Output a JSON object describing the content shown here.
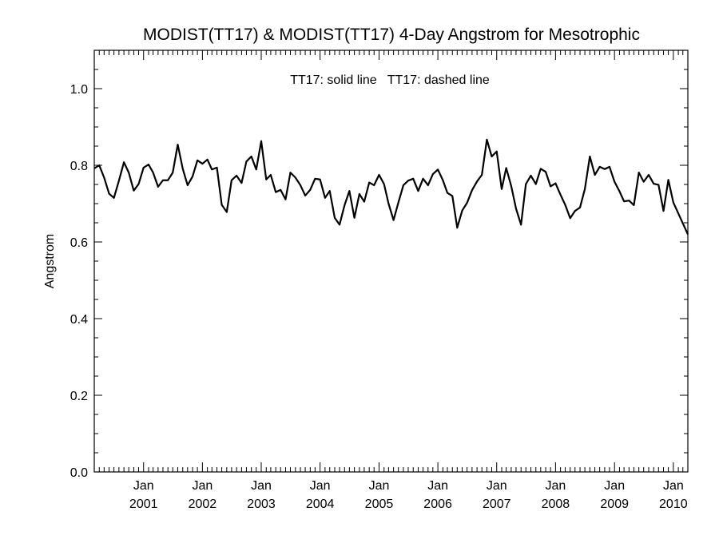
{
  "chart_data": {
    "type": "line",
    "title": "MODIST(TT17) & MODIST(TT17) 4-Day Angstrom for Mesotrophic",
    "xlabel": "",
    "ylabel": "Angstrom",
    "legend_text": "TT17: solid line   TT17: dashed line",
    "ylim": [
      0.0,
      1.1
    ],
    "xlim": [
      "2000-03-01",
      "2010-04-01"
    ],
    "y_ticks": [
      "0.0",
      "0.2",
      "0.4",
      "0.6",
      "0.8",
      "1.0"
    ],
    "x_ticks": [
      {
        "month": "Jan",
        "year": "2001",
        "date": "2001-01-01"
      },
      {
        "month": "Jan",
        "year": "2002",
        "date": "2002-01-01"
      },
      {
        "month": "Jan",
        "year": "2003",
        "date": "2003-01-01"
      },
      {
        "month": "Jan",
        "year": "2004",
        "date": "2004-01-01"
      },
      {
        "month": "Jan",
        "year": "2005",
        "date": "2005-01-01"
      },
      {
        "month": "Jan",
        "year": "2006",
        "date": "2006-01-01"
      },
      {
        "month": "Jan",
        "year": "2007",
        "date": "2007-01-01"
      },
      {
        "month": "Jan",
        "year": "2008",
        "date": "2008-01-01"
      },
      {
        "month": "Jan",
        "year": "2009",
        "date": "2009-01-01"
      },
      {
        "month": "Jan",
        "year": "2010",
        "date": "2010-01-01"
      }
    ],
    "series": [
      {
        "line_style": "solid",
        "color": "#000000",
        "points": [
          [
            "2000-03-01",
            0.792
          ],
          [
            "2000-04-01",
            0.8
          ],
          [
            "2000-05-01",
            0.768
          ],
          [
            "2000-06-01",
            0.726
          ],
          [
            "2000-07-01",
            0.715
          ],
          [
            "2000-08-01",
            0.76
          ],
          [
            "2000-09-01",
            0.808
          ],
          [
            "2000-10-01",
            0.781
          ],
          [
            "2000-11-01",
            0.734
          ],
          [
            "2000-12-01",
            0.751
          ],
          [
            "2001-01-01",
            0.794
          ],
          [
            "2001-02-01",
            0.802
          ],
          [
            "2001-03-01",
            0.781
          ],
          [
            "2001-04-01",
            0.744
          ],
          [
            "2001-05-01",
            0.761
          ],
          [
            "2001-06-01",
            0.761
          ],
          [
            "2001-07-01",
            0.781
          ],
          [
            "2001-08-01",
            0.854
          ],
          [
            "2001-09-01",
            0.791
          ],
          [
            "2001-10-01",
            0.748
          ],
          [
            "2001-11-01",
            0.771
          ],
          [
            "2001-12-01",
            0.813
          ],
          [
            "2002-01-01",
            0.804
          ],
          [
            "2002-02-01",
            0.815
          ],
          [
            "2002-03-01",
            0.789
          ],
          [
            "2002-04-01",
            0.794
          ],
          [
            "2002-05-01",
            0.697
          ],
          [
            "2002-06-01",
            0.678
          ],
          [
            "2002-07-01",
            0.761
          ],
          [
            "2002-08-01",
            0.773
          ],
          [
            "2002-09-01",
            0.754
          ],
          [
            "2002-10-01",
            0.81
          ],
          [
            "2002-11-01",
            0.823
          ],
          [
            "2002-12-01",
            0.789
          ],
          [
            "2003-01-01",
            0.863
          ],
          [
            "2003-02-01",
            0.763
          ],
          [
            "2003-03-01",
            0.775
          ],
          [
            "2003-04-01",
            0.73
          ],
          [
            "2003-05-01",
            0.736
          ],
          [
            "2003-06-01",
            0.711
          ],
          [
            "2003-07-01",
            0.781
          ],
          [
            "2003-08-01",
            0.768
          ],
          [
            "2003-09-01",
            0.748
          ],
          [
            "2003-10-01",
            0.721
          ],
          [
            "2003-11-01",
            0.736
          ],
          [
            "2003-12-01",
            0.765
          ],
          [
            "2004-01-01",
            0.763
          ],
          [
            "2004-02-01",
            0.715
          ],
          [
            "2004-03-01",
            0.733
          ],
          [
            "2004-04-01",
            0.663
          ],
          [
            "2004-05-01",
            0.645
          ],
          [
            "2004-06-01",
            0.696
          ],
          [
            "2004-07-01",
            0.733
          ],
          [
            "2004-08-01",
            0.663
          ],
          [
            "2004-09-01",
            0.725
          ],
          [
            "2004-10-01",
            0.705
          ],
          [
            "2004-11-01",
            0.755
          ],
          [
            "2004-12-01",
            0.748
          ],
          [
            "2005-01-01",
            0.775
          ],
          [
            "2005-02-01",
            0.751
          ],
          [
            "2005-03-01",
            0.7
          ],
          [
            "2005-04-01",
            0.657
          ],
          [
            "2005-05-01",
            0.703
          ],
          [
            "2005-06-01",
            0.748
          ],
          [
            "2005-07-01",
            0.76
          ],
          [
            "2005-08-01",
            0.765
          ],
          [
            "2005-09-01",
            0.733
          ],
          [
            "2005-10-01",
            0.765
          ],
          [
            "2005-11-01",
            0.748
          ],
          [
            "2005-12-01",
            0.777
          ],
          [
            "2006-01-01",
            0.789
          ],
          [
            "2006-02-01",
            0.761
          ],
          [
            "2006-03-01",
            0.728
          ],
          [
            "2006-04-01",
            0.72
          ],
          [
            "2006-05-01",
            0.637
          ],
          [
            "2006-06-01",
            0.682
          ],
          [
            "2006-07-01",
            0.702
          ],
          [
            "2006-08-01",
            0.735
          ],
          [
            "2006-09-01",
            0.758
          ],
          [
            "2006-10-01",
            0.775
          ],
          [
            "2006-11-01",
            0.867
          ],
          [
            "2006-12-01",
            0.823
          ],
          [
            "2007-01-01",
            0.836
          ],
          [
            "2007-02-01",
            0.738
          ],
          [
            "2007-03-01",
            0.793
          ],
          [
            "2007-04-01",
            0.746
          ],
          [
            "2007-05-01",
            0.687
          ],
          [
            "2007-06-01",
            0.645
          ],
          [
            "2007-07-01",
            0.751
          ],
          [
            "2007-08-01",
            0.773
          ],
          [
            "2007-09-01",
            0.751
          ],
          [
            "2007-10-01",
            0.791
          ],
          [
            "2007-11-01",
            0.783
          ],
          [
            "2007-12-01",
            0.745
          ],
          [
            "2008-01-01",
            0.753
          ],
          [
            "2008-02-01",
            0.723
          ],
          [
            "2008-03-01",
            0.697
          ],
          [
            "2008-04-01",
            0.662
          ],
          [
            "2008-05-01",
            0.681
          ],
          [
            "2008-06-01",
            0.69
          ],
          [
            "2008-07-01",
            0.738
          ],
          [
            "2008-08-01",
            0.823
          ],
          [
            "2008-09-01",
            0.775
          ],
          [
            "2008-10-01",
            0.796
          ],
          [
            "2008-11-01",
            0.79
          ],
          [
            "2008-12-01",
            0.796
          ],
          [
            "2009-01-01",
            0.757
          ],
          [
            "2009-02-01",
            0.732
          ],
          [
            "2009-03-01",
            0.706
          ],
          [
            "2009-04-01",
            0.708
          ],
          [
            "2009-05-01",
            0.696
          ],
          [
            "2009-06-01",
            0.781
          ],
          [
            "2009-07-01",
            0.757
          ],
          [
            "2009-08-01",
            0.775
          ],
          [
            "2009-09-01",
            0.752
          ],
          [
            "2009-10-01",
            0.749
          ],
          [
            "2009-11-01",
            0.681
          ],
          [
            "2009-12-01",
            0.762
          ],
          [
            "2010-01-01",
            0.703
          ],
          [
            "2010-04-01",
            0.62
          ]
        ]
      }
    ],
    "grid": false
  }
}
